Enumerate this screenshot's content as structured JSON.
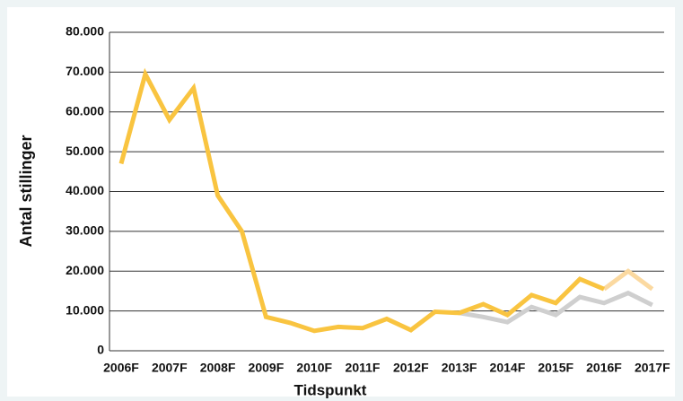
{
  "chart_data": {
    "type": "line",
    "xlabel": "Tidspunkt",
    "ylabel": "Antal stillinger",
    "categories": [
      "2006F",
      null,
      "2007F",
      null,
      "2008F",
      null,
      "2009F",
      null,
      "2010F",
      null,
      "2011F",
      null,
      "2012F",
      null,
      "2013F",
      null,
      "2014F",
      null,
      "2015F",
      null,
      "2016F",
      null,
      "2017F"
    ],
    "series": [
      {
        "color": "#cfcfcf",
        "values": [
          null,
          null,
          null,
          null,
          null,
          null,
          null,
          null,
          null,
          null,
          null,
          null,
          null,
          null,
          9500,
          8500,
          7200,
          11000,
          9000,
          13500,
          12000,
          14500,
          11500
        ]
      },
      {
        "color": "#fbd9a0",
        "values": [
          null,
          null,
          null,
          null,
          null,
          null,
          null,
          null,
          null,
          null,
          null,
          null,
          null,
          null,
          null,
          null,
          null,
          null,
          null,
          null,
          15500,
          20000,
          15500
        ]
      },
      {
        "color": "#f9c440",
        "values": [
          47000,
          69500,
          58000,
          66000,
          39000,
          30000,
          8500,
          7000,
          5000,
          6000,
          5700,
          8000,
          5200,
          9800,
          9500,
          11700,
          9000,
          14000,
          12000,
          18000,
          15500,
          null,
          null
        ]
      }
    ],
    "ylim": [
      0,
      80000
    ],
    "yticks": [
      0,
      {
        "value": 10000,
        "label": "10.000"
      },
      {
        "value": 20000,
        "label": "20.000"
      },
      {
        "value": 30000,
        "label": "30.000"
      },
      {
        "value": 40000,
        "label": "40.000"
      },
      {
        "value": 50000,
        "label": "50.000"
      },
      {
        "value": 60000,
        "label": "60.000"
      },
      {
        "value": 70000,
        "label": "70.000"
      },
      {
        "value": 80000,
        "label": "80.000"
      }
    ],
    "grid": true
  }
}
